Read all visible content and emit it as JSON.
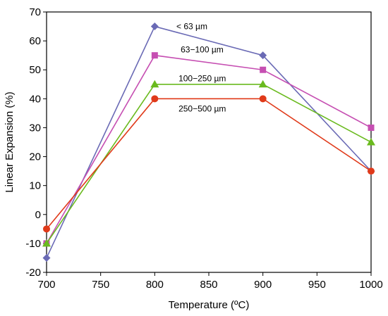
{
  "chart_data": {
    "type": "line",
    "xlabel": "Temperature (ºC)",
    "ylabel": "Linear Expansion (%)",
    "xlim": [
      700,
      1000
    ],
    "ylim": [
      -20,
      70
    ],
    "x_ticks": [
      700,
      750,
      800,
      850,
      900,
      950,
      1000
    ],
    "y_ticks": [
      -20,
      -10,
      0,
      10,
      20,
      30,
      40,
      50,
      60,
      70
    ],
    "grid": false,
    "legend": "inline labels near each series",
    "x": [
      700,
      800,
      900,
      1000
    ],
    "series": [
      {
        "name": "< 63 µm",
        "values": [
          -15,
          65,
          55,
          15
        ],
        "color": "#6a6ab5",
        "marker": "diamond",
        "label_at": [
          820,
          65
        ]
      },
      {
        "name": "63−100 µm",
        "values": [
          -10,
          55,
          50,
          30
        ],
        "color": "#c64fb2",
        "marker": "square",
        "label_at": [
          824,
          57
        ]
      },
      {
        "name": "100−250 µm",
        "values": [
          -10,
          45,
          45,
          25
        ],
        "color": "#6aba1e",
        "marker": "triangle",
        "label_at": [
          822,
          47
        ]
      },
      {
        "name": "250−500 µm",
        "values": [
          -5,
          40,
          40,
          15
        ],
        "color": "#e03a1a",
        "marker": "circle",
        "label_at": [
          822,
          36.5
        ]
      }
    ]
  }
}
